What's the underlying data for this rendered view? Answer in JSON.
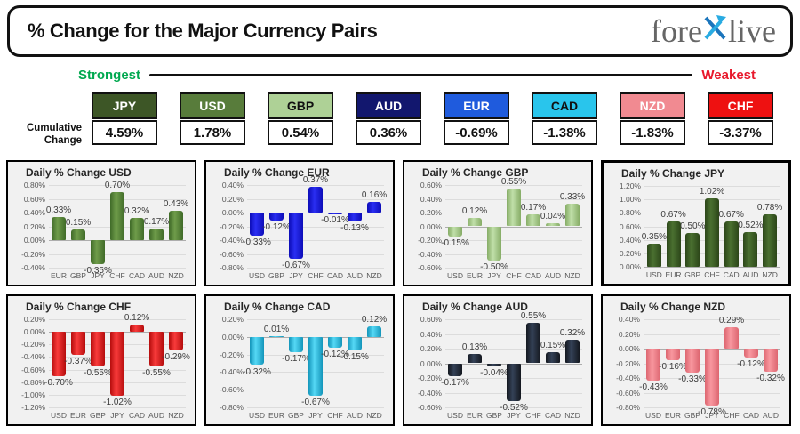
{
  "header": {
    "title": "% Change for the Major Currency Pairs",
    "logo": {
      "fore": "fore",
      "live": "live",
      "x_light": "#29abe2",
      "x_dark": "#1b75bc"
    }
  },
  "strength": {
    "strongest": "Strongest",
    "weakest": "Weakest",
    "strongest_color": "#00a84f",
    "weakest_color": "#e8192c"
  },
  "cumulative": {
    "label": "Cumulative Change",
    "items": [
      {
        "code": "JPY",
        "value": "4.59%",
        "bg": "#3d5626",
        "fg": "#ffffff"
      },
      {
        "code": "USD",
        "value": "1.78%",
        "bg": "#587c3b",
        "fg": "#ffffff"
      },
      {
        "code": "GBP",
        "value": "0.54%",
        "bg": "#aed196",
        "fg": "#111111"
      },
      {
        "code": "AUD",
        "value": "0.36%",
        "bg": "#12176e",
        "fg": "#ffffff"
      },
      {
        "code": "EUR",
        "value": "-0.69%",
        "bg": "#1f5bdd",
        "fg": "#ffffff"
      },
      {
        "code": "CAD",
        "value": "-1.38%",
        "bg": "#29c5ec",
        "fg": "#111111"
      },
      {
        "code": "NZD",
        "value": "-1.83%",
        "bg": "#f18a91",
        "fg": "#ffffff"
      },
      {
        "code": "CHF",
        "value": "-3.37%",
        "bg": "#ee1111",
        "fg": "#ffffff"
      }
    ]
  },
  "chart_data": [
    {
      "type": "bar",
      "code": "USD",
      "title": "Daily % Change USD",
      "categories": [
        "EUR",
        "GBP",
        "JPY",
        "CHF",
        "CAD",
        "AUD",
        "NZD"
      ],
      "values": [
        0.33,
        0.15,
        -0.35,
        0.7,
        0.32,
        0.17,
        0.43
      ],
      "ylim": [
        -0.4,
        0.8
      ],
      "tick_step": 0.2,
      "bar_edge": "#3f6a28",
      "bar_mid": "#6f9c4a",
      "border_px": 2
    },
    {
      "type": "bar",
      "code": "EUR",
      "title": "Daily % Change EUR",
      "categories": [
        "USD",
        "GBP",
        "JPY",
        "CHF",
        "CAD",
        "AUD",
        "NZD"
      ],
      "values": [
        -0.33,
        -0.12,
        -0.67,
        0.37,
        -0.01,
        -0.13,
        0.16
      ],
      "ylim": [
        -0.8,
        0.4
      ],
      "tick_step": 0.2,
      "bar_edge": "#0d0db8",
      "bar_mid": "#2a2ef2",
      "border_px": 2
    },
    {
      "type": "bar",
      "code": "GBP",
      "title": "Daily % Change GBP",
      "categories": [
        "USD",
        "EUR",
        "JPY",
        "CHF",
        "CAD",
        "AUD",
        "NZD"
      ],
      "values": [
        -0.15,
        0.12,
        -0.5,
        0.55,
        0.17,
        0.04,
        0.33
      ],
      "ylim": [
        -0.6,
        0.6
      ],
      "tick_step": 0.2,
      "bar_edge": "#86ac66",
      "bar_mid": "#c0dfa9",
      "border_px": 2
    },
    {
      "type": "bar",
      "code": "JPY",
      "title": "Daily % Change JPY",
      "categories": [
        "USD",
        "EUR",
        "GBP",
        "CHF",
        "CAD",
        "AUD",
        "NZD"
      ],
      "values": [
        0.35,
        0.67,
        0.5,
        1.02,
        0.67,
        0.52,
        0.78
      ],
      "ylim": [
        0.0,
        1.2
      ],
      "tick_step": 0.2,
      "bar_edge": "#2c4619",
      "bar_mid": "#4a7030",
      "border_px": 3
    },
    {
      "type": "bar",
      "code": "CHF",
      "title": "Daily % Change CHF",
      "categories": [
        "USD",
        "EUR",
        "GBP",
        "JPY",
        "CAD",
        "AUD",
        "NZD"
      ],
      "values": [
        -0.7,
        -0.37,
        -0.55,
        -1.02,
        0.12,
        -0.55,
        -0.29
      ],
      "ylim": [
        -1.2,
        0.2
      ],
      "tick_step": 0.2,
      "bar_edge": "#b40c0c",
      "bar_mid": "#f93b3b",
      "border_px": 2
    },
    {
      "type": "bar",
      "code": "CAD",
      "title": "Daily % Change CAD",
      "categories": [
        "USD",
        "EUR",
        "GBP",
        "JPY",
        "CHF",
        "AUD",
        "NZD"
      ],
      "values": [
        -0.32,
        0.01,
        -0.17,
        -0.67,
        -0.12,
        -0.15,
        0.12
      ],
      "ylim": [
        -0.8,
        0.2
      ],
      "tick_step": 0.2,
      "bar_edge": "#1395ba",
      "bar_mid": "#55d8f5",
      "border_px": 2
    },
    {
      "type": "bar",
      "code": "AUD",
      "title": "Daily % Change AUD",
      "categories": [
        "USD",
        "EUR",
        "GBP",
        "JPY",
        "CHF",
        "CAD",
        "NZD"
      ],
      "values": [
        -0.17,
        0.13,
        -0.04,
        -0.52,
        0.55,
        0.15,
        0.32
      ],
      "ylim": [
        -0.6,
        0.6
      ],
      "tick_step": 0.2,
      "bar_edge": "#14181f",
      "bar_mid": "#344157",
      "border_px": 2
    },
    {
      "type": "bar",
      "code": "NZD",
      "title": "Daily % Change NZD",
      "categories": [
        "USD",
        "EUR",
        "GBP",
        "JPY",
        "CHF",
        "CAD",
        "AUD"
      ],
      "values": [
        -0.43,
        -0.16,
        -0.33,
        -0.78,
        0.29,
        -0.12,
        -0.32
      ],
      "ylim": [
        -0.8,
        0.4
      ],
      "tick_step": 0.2,
      "bar_edge": "#dd6670",
      "bar_mid": "#f8979f",
      "border_px": 2
    }
  ]
}
